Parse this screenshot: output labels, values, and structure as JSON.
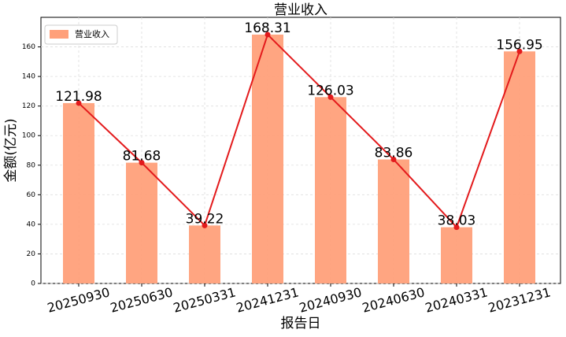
{
  "chart_data": {
    "type": "bar",
    "title": "营业收入",
    "xlabel": "报告日",
    "ylabel": "金额(亿元)",
    "categories": [
      "20250930",
      "20250630",
      "20250331",
      "20241231",
      "20240930",
      "20240630",
      "20240331",
      "20231231"
    ],
    "series": [
      {
        "name": "营业收入",
        "color": "#ffa07a",
        "values": [
          121.98,
          81.68,
          39.22,
          168.31,
          126.03,
          83.86,
          38.03,
          156.95
        ]
      }
    ],
    "line_color": "#e31a1c",
    "ylim": [
      0,
      180
    ],
    "yticks": [
      0,
      20,
      40,
      60,
      80,
      100,
      120,
      140,
      160
    ],
    "grid": true,
    "legend": "upper left"
  }
}
